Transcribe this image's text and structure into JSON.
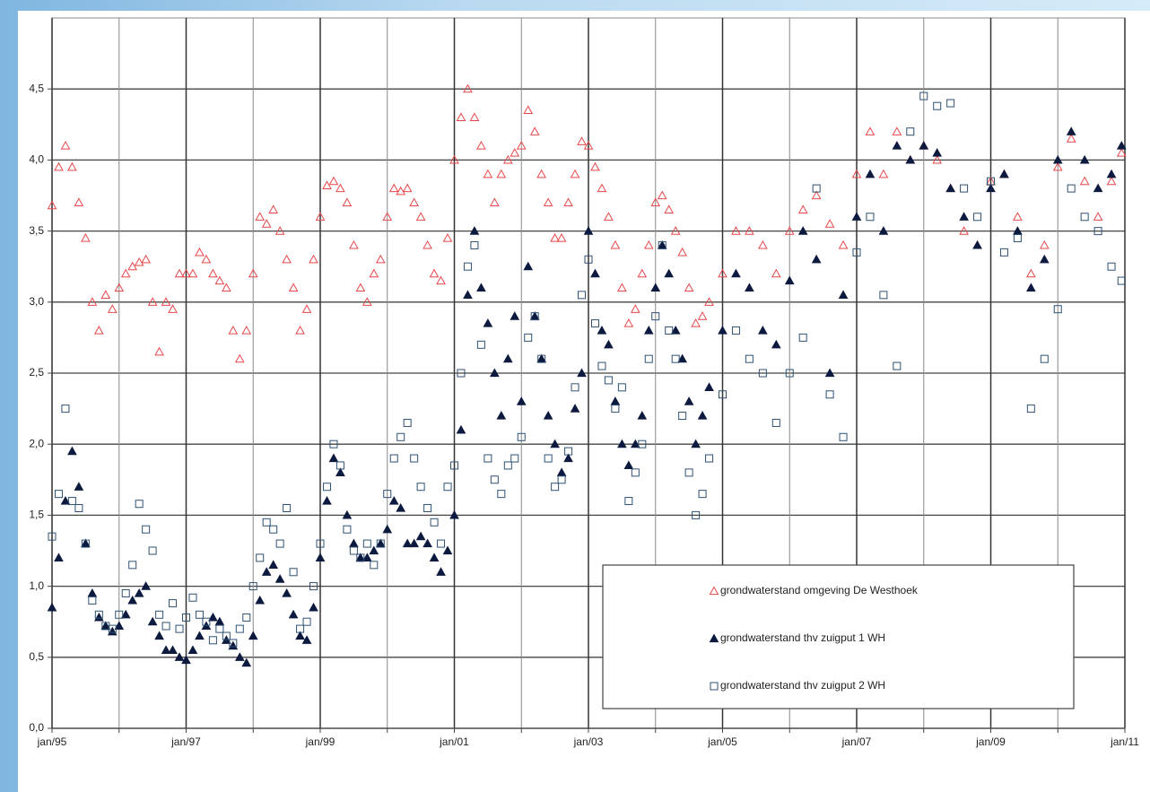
{
  "chart_data": {
    "type": "scatter",
    "x": [
      1995.0,
      1995.1,
      1995.2,
      1995.3,
      1995.4,
      1995.5,
      1995.6,
      1995.7,
      1995.8,
      1995.9,
      1996.0,
      1996.1,
      1996.2,
      1996.3,
      1996.4,
      1996.5,
      1996.6,
      1996.7,
      1996.8,
      1996.9,
      1997.0,
      1997.1,
      1997.2,
      1997.3,
      1997.4,
      1997.5,
      1997.6,
      1997.7,
      1997.8,
      1997.9,
      1998.0,
      1998.1,
      1998.2,
      1998.3,
      1998.4,
      1998.5,
      1998.6,
      1998.7,
      1998.8,
      1998.9,
      1999.0,
      1999.1,
      1999.2,
      1999.3,
      1999.4,
      1999.5,
      1999.6,
      1999.7,
      1999.8,
      1999.9,
      2000.0,
      2000.1,
      2000.2,
      2000.3,
      2000.4,
      2000.5,
      2000.6,
      2000.7,
      2000.8,
      2000.9,
      2001.0,
      2001.1,
      2001.2,
      2001.3,
      2001.4,
      2001.5,
      2001.6,
      2001.7,
      2001.8,
      2001.9,
      2002.0,
      2002.1,
      2002.2,
      2002.3,
      2002.4,
      2002.5,
      2002.6,
      2002.7,
      2002.8,
      2002.9,
      2003.0,
      2003.1,
      2003.2,
      2003.3,
      2003.4,
      2003.5,
      2003.6,
      2003.7,
      2003.8,
      2003.9,
      2004.0,
      2004.1,
      2004.2,
      2004.3,
      2004.4,
      2004.5,
      2004.6,
      2004.7,
      2004.8,
      2005.0,
      2005.2,
      2005.4,
      2005.6,
      2005.8,
      2006.0,
      2006.2,
      2006.4,
      2006.6,
      2006.8,
      2007.0,
      2007.2,
      2007.4,
      2007.6,
      2007.8,
      2008.0,
      2008.2,
      2008.4,
      2008.6,
      2008.8,
      2009.0,
      2009.2,
      2009.4,
      2009.6,
      2009.8,
      2010.0,
      2010.2,
      2010.4,
      2010.6,
      2010.8,
      2010.95
    ],
    "series": [
      {
        "name": "grondwaterstand omgeving De Westhoek",
        "color": "#e8474a",
        "marker": "triangle-open",
        "values": [
          3.68,
          3.95,
          4.1,
          3.95,
          3.7,
          3.45,
          3.0,
          2.8,
          3.05,
          2.95,
          3.1,
          3.2,
          3.25,
          3.28,
          3.3,
          3.0,
          2.65,
          3.0,
          2.95,
          3.2,
          3.2,
          3.2,
          3.35,
          3.3,
          3.2,
          3.15,
          3.1,
          2.8,
          2.6,
          2.8,
          3.2,
          3.6,
          3.55,
          3.65,
          3.5,
          3.3,
          3.1,
          2.8,
          2.95,
          3.3,
          3.6,
          3.82,
          3.85,
          3.8,
          3.7,
          3.4,
          3.1,
          3.0,
          3.2,
          3.3,
          3.6,
          3.8,
          3.78,
          3.8,
          3.7,
          3.6,
          3.4,
          3.2,
          3.15,
          3.45,
          4.0,
          4.3,
          4.5,
          4.3,
          4.1,
          3.9,
          3.7,
          3.9,
          4.0,
          4.05,
          4.1,
          4.35,
          4.2,
          3.9,
          3.7,
          3.45,
          3.45,
          3.7,
          3.9,
          4.13,
          4.1,
          3.95,
          3.8,
          3.6,
          3.4,
          3.1,
          2.85,
          2.95,
          3.2,
          3.4,
          3.7,
          3.75,
          3.65,
          3.5,
          3.35,
          3.1,
          2.85,
          2.9,
          3.0,
          3.2,
          3.5,
          3.5,
          3.4,
          3.2,
          3.5,
          3.65,
          3.75,
          3.55,
          3.4,
          3.9,
          4.2,
          3.9,
          4.2,
          4.0,
          4.1,
          4.0,
          3.8,
          3.5,
          3.4,
          3.85,
          3.9,
          3.6,
          3.2,
          3.4,
          3.95,
          4.15,
          3.85,
          3.6,
          3.85,
          4.05
        ]
      },
      {
        "name": "grondwaterstand thv zuigput 1 WH",
        "color": "#0d1a3f",
        "marker": "triangle",
        "values": [
          0.85,
          1.2,
          1.6,
          1.95,
          1.7,
          1.3,
          0.95,
          0.78,
          0.72,
          0.68,
          0.72,
          0.8,
          0.9,
          0.95,
          1.0,
          0.75,
          0.65,
          0.55,
          0.55,
          0.5,
          0.48,
          0.55,
          0.65,
          0.72,
          0.78,
          0.75,
          0.62,
          0.58,
          0.5,
          0.46,
          0.65,
          0.9,
          1.1,
          1.15,
          1.05,
          0.95,
          0.8,
          0.65,
          0.62,
          0.85,
          1.2,
          1.6,
          1.9,
          1.8,
          1.5,
          1.3,
          1.2,
          1.2,
          1.25,
          1.3,
          1.4,
          1.6,
          1.55,
          1.3,
          1.3,
          1.35,
          1.3,
          1.2,
          1.1,
          1.25,
          1.5,
          2.1,
          3.05,
          3.5,
          3.1,
          2.85,
          2.5,
          2.2,
          2.6,
          2.9,
          2.3,
          3.25,
          2.9,
          2.6,
          2.2,
          2.0,
          1.8,
          1.9,
          2.25,
          2.5,
          3.5,
          3.2,
          2.8,
          2.7,
          2.3,
          2.0,
          1.85,
          2.0,
          2.2,
          2.8,
          3.1,
          3.4,
          3.2,
          2.8,
          2.6,
          2.3,
          2.0,
          2.2,
          2.4,
          2.8,
          3.2,
          3.1,
          2.8,
          2.7,
          3.15,
          3.5,
          3.3,
          2.5,
          3.05,
          3.6,
          3.9,
          3.5,
          4.1,
          4.0,
          4.1,
          4.05,
          3.8,
          3.6,
          3.4,
          3.8,
          3.9,
          3.5,
          3.1,
          3.3,
          4.0,
          4.2,
          4.0,
          3.8,
          3.9,
          4.1
        ]
      },
      {
        "name": "grondwaterstand thv zuigput 2 WH",
        "color": "#2f5173",
        "marker": "square-open",
        "values": [
          1.35,
          1.65,
          2.25,
          1.6,
          1.55,
          1.3,
          0.9,
          0.8,
          0.72,
          0.7,
          0.8,
          0.95,
          1.15,
          1.58,
          1.4,
          1.25,
          0.8,
          0.72,
          0.88,
          0.7,
          0.78,
          0.92,
          0.8,
          0.75,
          0.62,
          0.7,
          0.65,
          0.6,
          0.7,
          0.78,
          1.0,
          1.2,
          1.45,
          1.4,
          1.3,
          1.55,
          1.1,
          0.7,
          0.75,
          1.0,
          1.3,
          1.7,
          2.0,
          1.85,
          1.4,
          1.25,
          1.2,
          1.3,
          1.15,
          1.3,
          1.65,
          1.9,
          2.05,
          2.15,
          1.9,
          1.7,
          1.55,
          1.45,
          1.3,
          1.7,
          1.85,
          2.5,
          3.25,
          3.4,
          2.7,
          1.9,
          1.75,
          1.65,
          1.85,
          1.9,
          2.05,
          2.75,
          2.9,
          2.6,
          1.9,
          1.7,
          1.75,
          1.95,
          2.4,
          3.05,
          3.3,
          2.85,
          2.55,
          2.45,
          2.25,
          2.4,
          1.6,
          1.8,
          2.0,
          2.6,
          2.9,
          3.4,
          2.8,
          2.6,
          2.2,
          1.8,
          1.5,
          1.65,
          1.9,
          2.35,
          2.8,
          2.6,
          2.5,
          2.15,
          2.5,
          2.75,
          3.8,
          2.35,
          2.05,
          3.35,
          3.6,
          3.05,
          2.55,
          4.2,
          4.45,
          4.38,
          4.4,
          3.8,
          3.6,
          3.85,
          3.35,
          3.45,
          2.25,
          2.6,
          2.95,
          3.8,
          3.6,
          3.5,
          3.25,
          3.15
        ]
      }
    ],
    "xlim": [
      1995,
      2011
    ],
    "xticks": [
      {
        "value": 1995,
        "label": "jan/95"
      },
      {
        "value": 1997,
        "label": "jan/97"
      },
      {
        "value": 1999,
        "label": "jan/99"
      },
      {
        "value": 2001,
        "label": "jan/01"
      },
      {
        "value": 2003,
        "label": "jan/03"
      },
      {
        "value": 2005,
        "label": "jan/05"
      },
      {
        "value": 2007,
        "label": "jan/07"
      },
      {
        "value": 2009,
        "label": "jan/09"
      },
      {
        "value": 2011,
        "label": "jan/11"
      }
    ],
    "x_minor_ticks": [
      1996,
      1998,
      2000,
      2002,
      2004,
      2006,
      2008,
      2010
    ],
    "ylim": [
      0,
      5
    ],
    "yticks": [
      {
        "value": 0,
        "label": "0,0"
      },
      {
        "value": 0.5,
        "label": "0,5"
      },
      {
        "value": 1,
        "label": "1,0"
      },
      {
        "value": 1.5,
        "label": "1,5"
      },
      {
        "value": 2,
        "label": "2,0"
      },
      {
        "value": 2.5,
        "label": "2,5"
      },
      {
        "value": 3,
        "label": "3,0"
      },
      {
        "value": 3.5,
        "label": "3,5"
      },
      {
        "value": 4,
        "label": "4,0"
      },
      {
        "value": 4.5,
        "label": "4,5"
      }
    ],
    "grid": true,
    "legend": "lower-right"
  }
}
